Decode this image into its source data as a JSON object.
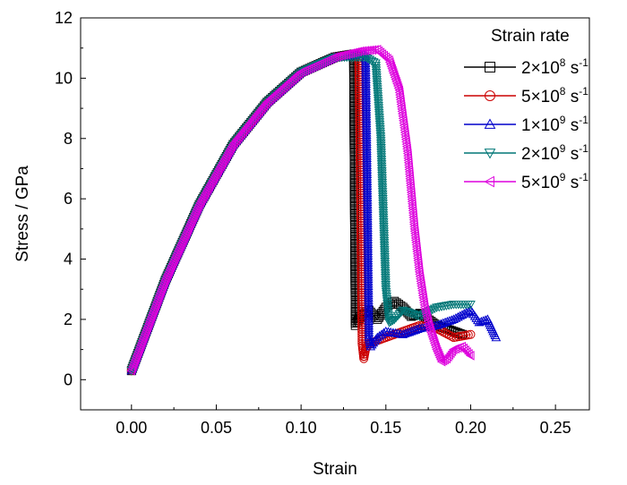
{
  "chart_data": {
    "type": "line",
    "xlabel": "Strain",
    "ylabel": "Stress / GPa",
    "xlim": [
      -0.03,
      0.27
    ],
    "ylim": [
      -1,
      12
    ],
    "x_ticks": [
      0.0,
      0.05,
      0.1,
      0.15,
      0.2,
      0.25
    ],
    "x_tick_labels": [
      "0.00",
      "0.05",
      "0.10",
      "0.15",
      "0.20",
      "0.25"
    ],
    "y_ticks": [
      0,
      2,
      4,
      6,
      8,
      10,
      12
    ],
    "y_tick_labels": [
      "0",
      "2",
      "4",
      "6",
      "8",
      "10",
      "12"
    ],
    "grid": false,
    "legend_position": "top-right",
    "legend_title": "Strain rate",
    "series": [
      {
        "name": "2×10⁸ s⁻¹",
        "label_pre": "2×10",
        "label_exp": "8",
        "color": "#000000",
        "marker": "square",
        "x": [
          0.0,
          0.02,
          0.04,
          0.06,
          0.08,
          0.1,
          0.12,
          0.131,
          0.1315,
          0.132,
          0.133,
          0.135,
          0.14,
          0.145,
          0.15,
          0.155,
          0.16,
          0.165,
          0.17,
          0.18,
          0.19,
          0.195
        ],
        "y": [
          0.3,
          3.3,
          5.8,
          7.8,
          9.2,
          10.2,
          10.7,
          10.8,
          6.0,
          1.8,
          1.9,
          2.1,
          2.3,
          2.0,
          2.4,
          2.6,
          2.4,
          2.1,
          2.2,
          1.8,
          1.6,
          1.5
        ]
      },
      {
        "name": "5×10⁸ s⁻¹",
        "label_pre": "5×10",
        "label_exp": "8",
        "color": "#cc0000",
        "marker": "circle",
        "x": [
          0.0,
          0.02,
          0.04,
          0.06,
          0.08,
          0.1,
          0.12,
          0.134,
          0.135,
          0.136,
          0.137,
          0.138,
          0.14,
          0.15,
          0.16,
          0.17,
          0.18,
          0.19,
          0.2
        ],
        "y": [
          0.3,
          3.3,
          5.8,
          7.8,
          9.2,
          10.2,
          10.7,
          10.8,
          6.5,
          1.2,
          0.7,
          1.0,
          1.2,
          1.4,
          1.6,
          1.8,
          1.7,
          1.4,
          1.5
        ]
      },
      {
        "name": "1×10⁹ s⁻¹",
        "label_pre": "1×10",
        "label_exp": "9",
        "color": "#0000cc",
        "marker": "triangle-up",
        "x": [
          0.0,
          0.02,
          0.04,
          0.06,
          0.08,
          0.1,
          0.12,
          0.138,
          0.139,
          0.14,
          0.141,
          0.145,
          0.15,
          0.16,
          0.17,
          0.18,
          0.19,
          0.2,
          0.205,
          0.21,
          0.215
        ],
        "y": [
          0.3,
          3.3,
          5.8,
          7.8,
          9.2,
          10.2,
          10.7,
          10.8,
          6.5,
          1.4,
          1.1,
          1.4,
          1.6,
          1.5,
          1.7,
          1.8,
          2.0,
          2.3,
          1.9,
          2.0,
          1.4
        ]
      },
      {
        "name": "2×10⁹ s⁻¹",
        "label_pre": "2×10",
        "label_exp": "9",
        "color": "#007777",
        "marker": "triangle-down",
        "x": [
          0.0,
          0.02,
          0.04,
          0.06,
          0.08,
          0.1,
          0.12,
          0.138,
          0.144,
          0.147,
          0.15,
          0.152,
          0.155,
          0.16,
          0.17,
          0.18,
          0.19,
          0.2
        ],
        "y": [
          0.3,
          3.3,
          5.8,
          7.8,
          9.2,
          10.2,
          10.7,
          10.7,
          10.5,
          8.0,
          3.0,
          1.9,
          2.0,
          2.3,
          2.1,
          2.4,
          2.5,
          2.5
        ]
      },
      {
        "name": "5×10⁹ s⁻¹",
        "label_pre": "5×10",
        "label_exp": "9",
        "color": "#dd00dd",
        "marker": "triangle-left",
        "x": [
          0.0,
          0.02,
          0.04,
          0.06,
          0.08,
          0.1,
          0.12,
          0.135,
          0.145,
          0.152,
          0.158,
          0.163,
          0.167,
          0.17,
          0.173,
          0.176,
          0.18,
          0.183,
          0.186,
          0.19,
          0.195,
          0.2
        ],
        "y": [
          0.3,
          3.3,
          5.8,
          7.8,
          9.2,
          10.2,
          10.7,
          10.9,
          10.95,
          10.6,
          9.6,
          7.5,
          5.0,
          3.5,
          2.4,
          1.7,
          1.0,
          0.6,
          0.7,
          1.0,
          1.1,
          0.8
        ]
      }
    ]
  }
}
